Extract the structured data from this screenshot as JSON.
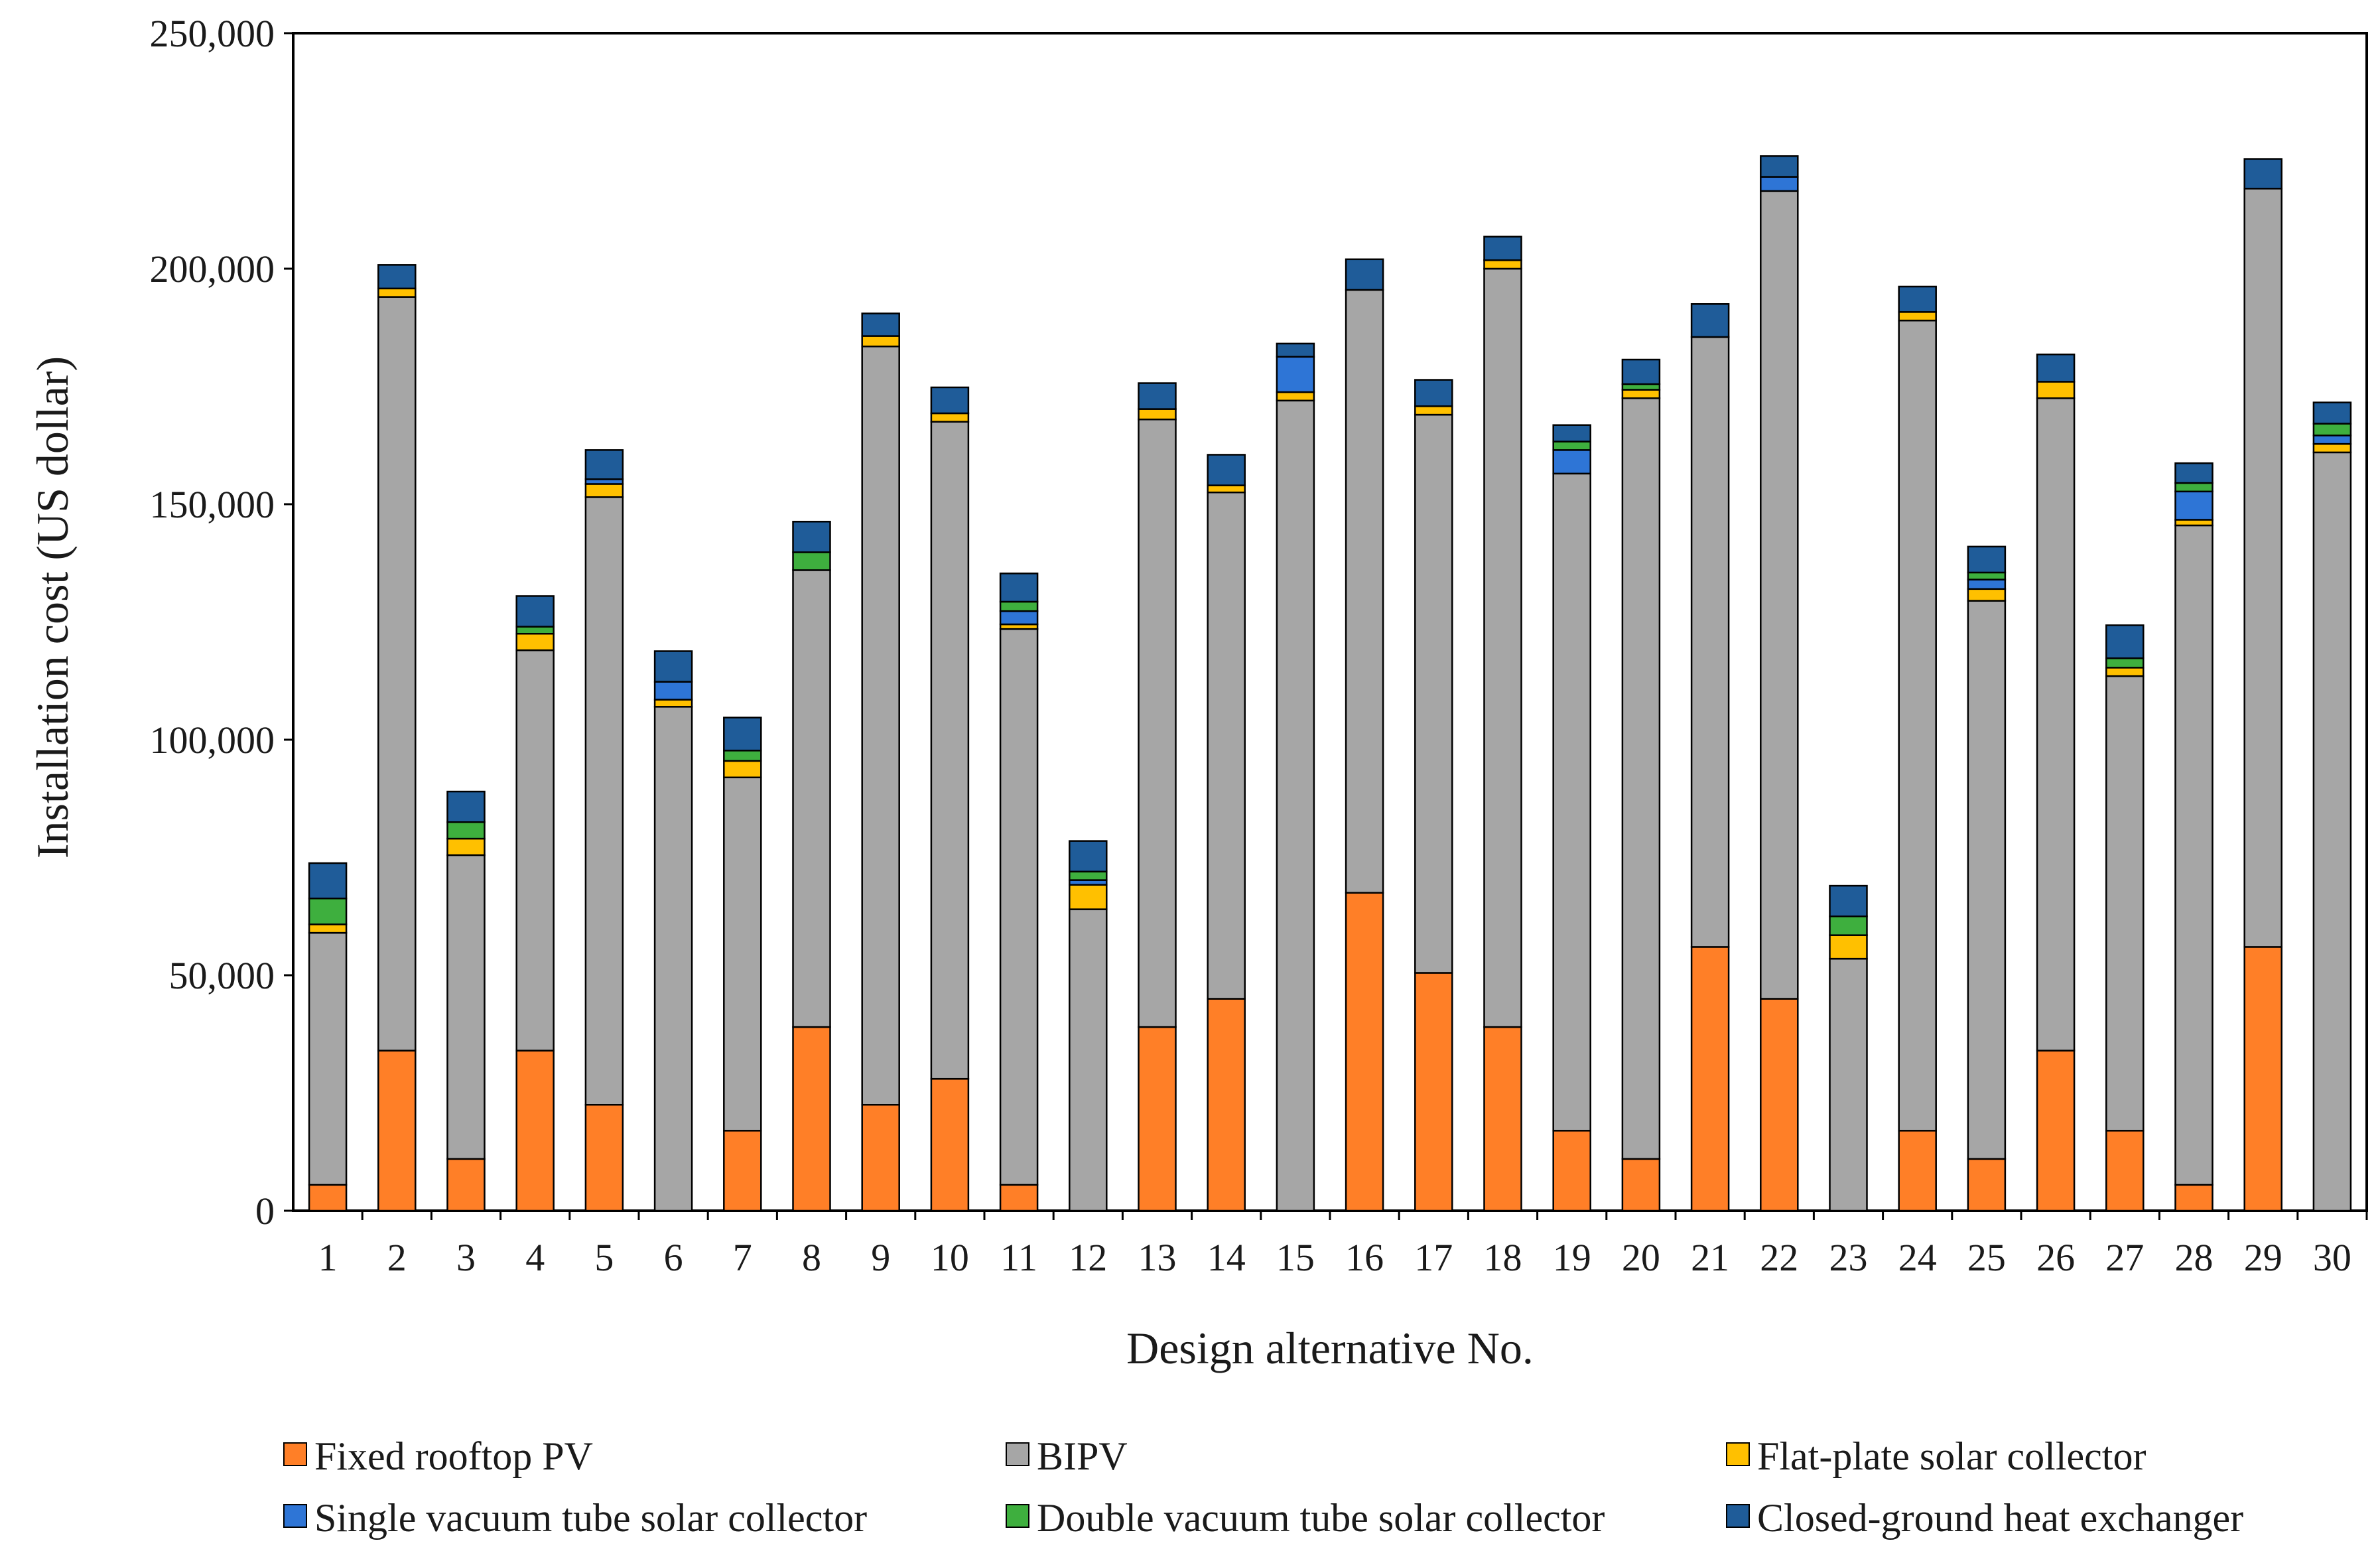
{
  "chart_data": {
    "type": "bar",
    "stacked": true,
    "xlabel": "Design alternative  No.",
    "ylabel": "Installation cost (US dollar)",
    "ylim": [
      0,
      250000
    ],
    "yticks": [
      0,
      50000,
      100000,
      150000,
      200000,
      250000
    ],
    "ytick_labels": [
      "0",
      "50,000",
      "100,000",
      "150,000",
      "200,000",
      "250,000"
    ],
    "categories": [
      "1",
      "2",
      "3",
      "4",
      "5",
      "6",
      "7",
      "8",
      "9",
      "10",
      "11",
      "12",
      "13",
      "14",
      "15",
      "16",
      "17",
      "18",
      "19",
      "20",
      "21",
      "22",
      "23",
      "24",
      "25",
      "26",
      "27",
      "28",
      "29",
      "30"
    ],
    "legend_position": "bottom",
    "series": [
      {
        "name": "Fixed rooftop PV",
        "color": "#FF7F27",
        "values": [
          5500,
          34000,
          11000,
          34000,
          22500,
          0,
          17000,
          39000,
          22500,
          28000,
          5500,
          0,
          39000,
          45000,
          0,
          67500,
          50500,
          39000,
          17000,
          11000,
          56000,
          45000,
          0,
          17000,
          11000,
          34000,
          17000,
          5500,
          56000,
          0
        ]
      },
      {
        "name": "BIPV",
        "color": "#A6A6A6",
        "values": [
          53500,
          160000,
          64500,
          85000,
          129000,
          107000,
          75000,
          97000,
          161000,
          139500,
          118000,
          64000,
          129000,
          107500,
          172000,
          128000,
          118500,
          161000,
          139500,
          161500,
          129500,
          171500,
          53500,
          172000,
          118500,
          138500,
          96500,
          140000,
          161000,
          161000
        ]
      },
      {
        "name": "Flat-plate solar collector",
        "color": "#FFC000",
        "values": [
          1800,
          1800,
          3500,
          3500,
          2800,
          1500,
          3500,
          0,
          2200,
          1800,
          1000,
          5200,
          2200,
          1500,
          1800,
          0,
          1800,
          1800,
          0,
          1800,
          0,
          0,
          5000,
          1800,
          2500,
          3500,
          1800,
          1200,
          0,
          1800
        ]
      },
      {
        "name": "Single vacuum tube solar collector",
        "color": "#2E75D6",
        "values": [
          0,
          0,
          0,
          0,
          1000,
          3800,
          0,
          0,
          0,
          0,
          2800,
          1000,
          0,
          0,
          7500,
          0,
          0,
          0,
          5000,
          0,
          0,
          3000,
          0,
          0,
          2000,
          0,
          0,
          6000,
          0,
          1800
        ]
      },
      {
        "name": "Double vacuum tube solar collector",
        "color": "#3EAF3E",
        "values": [
          5500,
          0,
          3500,
          1500,
          0,
          0,
          2200,
          3800,
          0,
          0,
          2000,
          1800,
          0,
          0,
          0,
          0,
          0,
          0,
          1800,
          1200,
          0,
          0,
          4000,
          0,
          1500,
          0,
          2000,
          1800,
          0,
          2500
        ]
      },
      {
        "name": "Closed-ground heat exchanger",
        "color": "#1F5C99",
        "values": [
          7500,
          5000,
          6500,
          6500,
          6200,
          6500,
          7000,
          6500,
          4800,
          5500,
          6000,
          6500,
          5500,
          6500,
          2800,
          6500,
          5600,
          5000,
          3500,
          5200,
          7000,
          4400,
          6500,
          5400,
          5500,
          5800,
          7000,
          4200,
          6300,
          4500
        ]
      }
    ]
  }
}
